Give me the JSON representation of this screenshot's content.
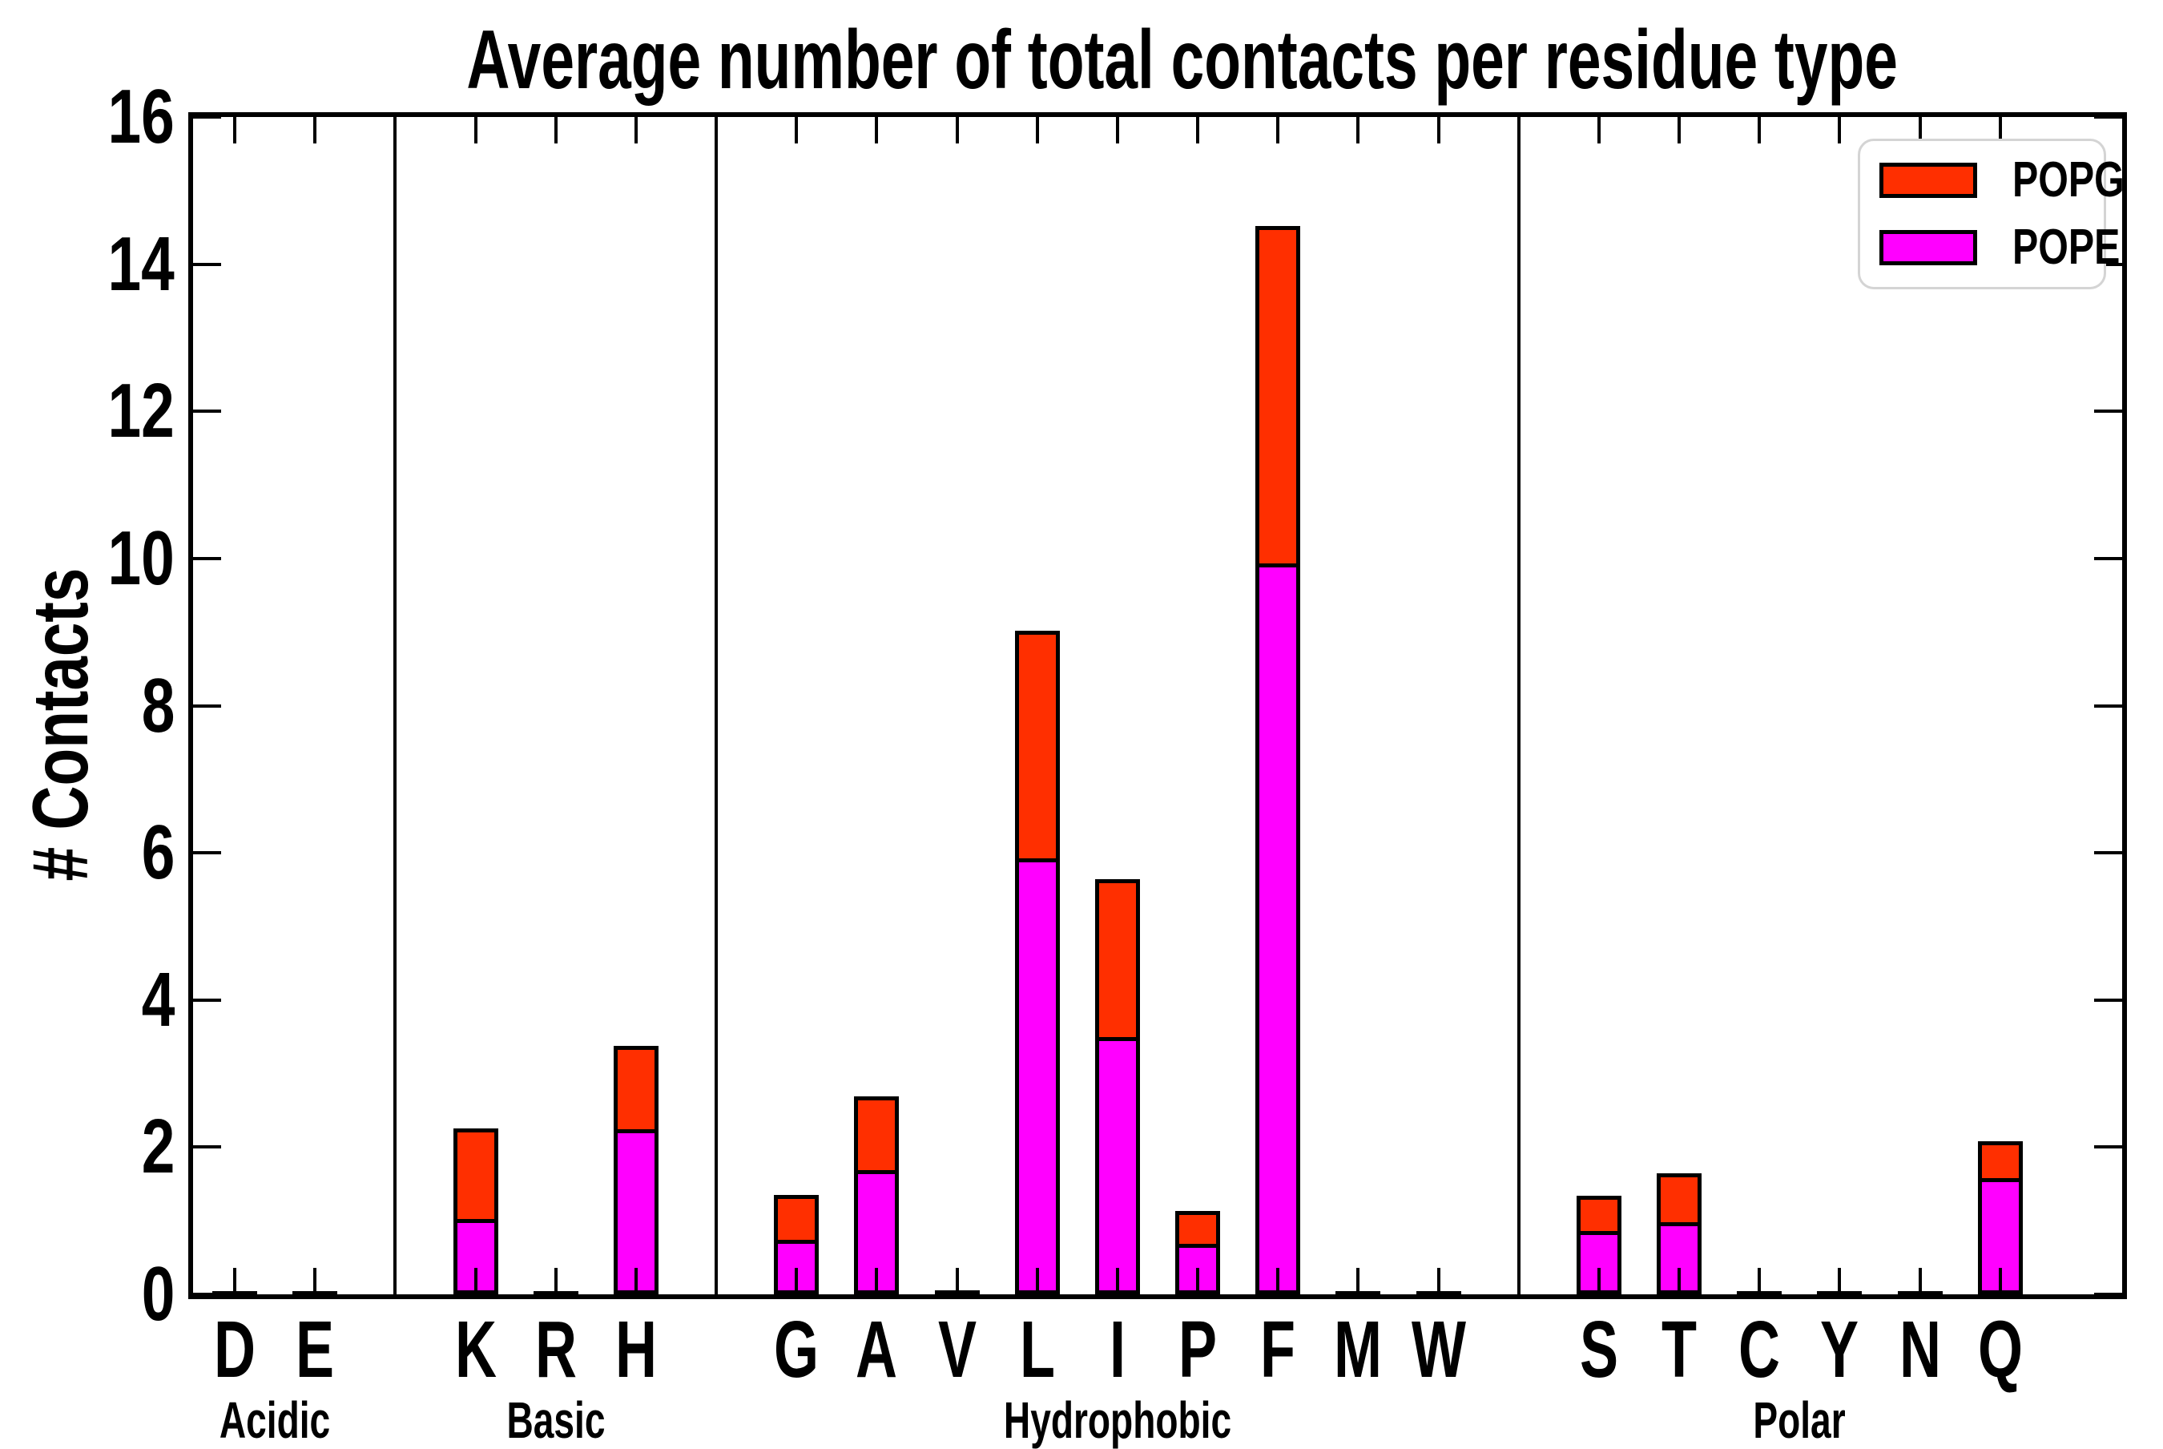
{
  "title": "Average number of total contacts per residue type",
  "y_axis": {
    "label": "# Contacts",
    "min": 0,
    "max": 16,
    "tick_step": 2,
    "tick_labels": [
      "0",
      "2",
      "4",
      "6",
      "8",
      "10",
      "12",
      "14",
      "16"
    ]
  },
  "legend": {
    "position": "top-right",
    "entries": [
      {
        "label": "POPG",
        "color": "#ff2f00"
      },
      {
        "label": "POPE",
        "color": "#ff00ff"
      }
    ]
  },
  "chart_data": {
    "type": "bar",
    "stacked": true,
    "title": "Average number of total contacts per residue type",
    "xlabel": "",
    "ylabel": "# Contacts",
    "ylim": [
      0,
      16
    ],
    "grid": false,
    "legend_position": "upper right",
    "categories": [
      "D",
      "E",
      "K",
      "R",
      "H",
      "G",
      "A",
      "V",
      "L",
      "I",
      "P",
      "F",
      "M",
      "W",
      "S",
      "T",
      "C",
      "Y",
      "N",
      "Q"
    ],
    "groups": [
      {
        "label": "Acidic",
        "residues": [
          "D",
          "E"
        ]
      },
      {
        "label": "Basic",
        "residues": [
          "K",
          "R",
          "H"
        ]
      },
      {
        "label": "Hydrophobic",
        "residues": [
          "G",
          "A",
          "V",
          "L",
          "I",
          "P",
          "F",
          "M",
          "W"
        ]
      },
      {
        "label": "Polar",
        "residues": [
          "S",
          "T",
          "C",
          "Y",
          "N",
          "Q"
        ]
      }
    ],
    "series": [
      {
        "name": "POPE",
        "color": "#ff00ff",
        "values": [
          0.02,
          0.02,
          1.02,
          0.02,
          2.24,
          0.74,
          1.69,
          0.03,
          5.93,
          3.5,
          0.69,
          9.93,
          0.02,
          0.02,
          0.86,
          0.98,
          0.01,
          0.02,
          0.02,
          1.58
        ]
      },
      {
        "name": "POPG",
        "color": "#ff2f00",
        "values": [
          0.01,
          0.01,
          1.24,
          0.01,
          1.14,
          0.61,
          1.0,
          0.02,
          3.09,
          2.14,
          0.44,
          4.59,
          0.01,
          0.01,
          0.48,
          0.66,
          0.01,
          0.01,
          0.01,
          0.5
        ]
      }
    ],
    "totals": [
      0.03,
      0.03,
      2.26,
      0.03,
      3.38,
      1.35,
      2.69,
      0.05,
      9.02,
      5.64,
      1.13,
      14.52,
      0.03,
      0.03,
      1.34,
      1.64,
      0.02,
      0.03,
      0.03,
      2.08
    ]
  }
}
